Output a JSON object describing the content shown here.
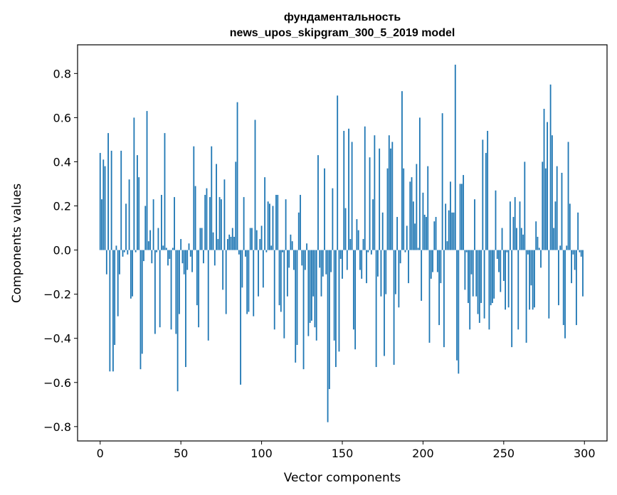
{
  "chart_data": {
    "type": "bar",
    "title_lines": [
      "фундаментальность",
      "news_upos_skipgram_300_5_2019 model"
    ],
    "xlabel": "Vector components",
    "ylabel": "Components values",
    "xlim": [
      -14,
      314
    ],
    "ylim": [
      -0.865,
      0.93
    ],
    "xticks": [
      0,
      50,
      100,
      150,
      200,
      250,
      300
    ],
    "yticks": [
      -0.8,
      -0.6,
      -0.4,
      -0.2,
      0.0,
      0.2,
      0.4,
      0.6,
      0.8
    ],
    "xtick_labels": [
      "0",
      "50",
      "100",
      "150",
      "200",
      "250",
      "300"
    ],
    "ytick_labels": [
      "−0.8",
      "−0.6",
      "−0.4",
      "−0.2",
      "0.0",
      "0.2",
      "0.4",
      "0.6",
      "0.8"
    ],
    "bar_color": "#1f77b4",
    "x": [
      0,
      1,
      2,
      3,
      4,
      5,
      6,
      7,
      8,
      9,
      10,
      11,
      12,
      13,
      14,
      15,
      16,
      17,
      18,
      19,
      20,
      21,
      22,
      23,
      24,
      25,
      26,
      27,
      28,
      29,
      30,
      31,
      32,
      33,
      34,
      35,
      36,
      37,
      38,
      39,
      40,
      41,
      42,
      43,
      44,
      45,
      46,
      47,
      48,
      49,
      50,
      51,
      52,
      53,
      54,
      55,
      56,
      57,
      58,
      59,
      60,
      61,
      62,
      63,
      64,
      65,
      66,
      67,
      68,
      69,
      70,
      71,
      72,
      73,
      74,
      75,
      76,
      77,
      78,
      79,
      80,
      81,
      82,
      83,
      84,
      85,
      86,
      87,
      88,
      89,
      90,
      91,
      92,
      93,
      94,
      95,
      96,
      97,
      98,
      99,
      100,
      101,
      102,
      103,
      104,
      105,
      106,
      107,
      108,
      109,
      110,
      111,
      112,
      113,
      114,
      115,
      116,
      117,
      118,
      119,
      120,
      121,
      122,
      123,
      124,
      125,
      126,
      127,
      128,
      129,
      130,
      131,
      132,
      133,
      134,
      135,
      136,
      137,
      138,
      139,
      140,
      141,
      142,
      143,
      144,
      145,
      146,
      147,
      148,
      149,
      150,
      151,
      152,
      153,
      154,
      155,
      156,
      157,
      158,
      159,
      160,
      161,
      162,
      163,
      164,
      165,
      166,
      167,
      168,
      169,
      170,
      171,
      172,
      173,
      174,
      175,
      176,
      177,
      178,
      179,
      180,
      181,
      182,
      183,
      184,
      185,
      186,
      187,
      188,
      189,
      190,
      191,
      192,
      193,
      194,
      195,
      196,
      197,
      198,
      199,
      200,
      201,
      202,
      203,
      204,
      205,
      206,
      207,
      208,
      209,
      210,
      211,
      212,
      213,
      214,
      215,
      216,
      217,
      218,
      219,
      220,
      221,
      222,
      223,
      224,
      225,
      226,
      227,
      228,
      229,
      230,
      231,
      232,
      233,
      234,
      235,
      236,
      237,
      238,
      239,
      240,
      241,
      242,
      243,
      244,
      245,
      246,
      247,
      248,
      249,
      250,
      251,
      252,
      253,
      254,
      255,
      256,
      257,
      258,
      259,
      260,
      261,
      262,
      263,
      264,
      265,
      266,
      267,
      268,
      269,
      270,
      271,
      272,
      273,
      274,
      275,
      276,
      277,
      278,
      279,
      280,
      281,
      282,
      283,
      284,
      285,
      286,
      287,
      288,
      289,
      290,
      291,
      292,
      293,
      294,
      295,
      296,
      297,
      298,
      299
    ],
    "values": [
      0.44,
      0.23,
      0.41,
      0.38,
      -0.11,
      0.53,
      -0.55,
      0.45,
      -0.55,
      -0.43,
      0.02,
      -0.3,
      -0.11,
      0.45,
      -0.03,
      -0.01,
      0.21,
      -0.02,
      0.32,
      -0.22,
      -0.21,
      0.6,
      -0.01,
      0.43,
      0.33,
      -0.54,
      -0.47,
      -0.05,
      0.2,
      0.63,
      0.04,
      0.09,
      -0.06,
      0.23,
      -0.38,
      -0.01,
      0.1,
      -0.35,
      0.25,
      0.02,
      0.53,
      0.01,
      -0.07,
      -0.04,
      -0.36,
      0.01,
      0.24,
      -0.38,
      -0.64,
      -0.29,
      0.05,
      -0.06,
      -0.11,
      -0.53,
      -0.09,
      0.03,
      -0.03,
      -0.1,
      0.47,
      0.29,
      -0.25,
      -0.35,
      0.1,
      0.1,
      -0.06,
      0.25,
      0.28,
      -0.41,
      0.24,
      0.47,
      0.08,
      -0.07,
      0.39,
      0.05,
      0.24,
      0.23,
      -0.18,
      0.32,
      -0.29,
      0.05,
      0.07,
      0.06,
      0.1,
      0.06,
      0.4,
      0.67,
      -0.02,
      -0.61,
      -0.17,
      0.24,
      -0.03,
      -0.29,
      -0.28,
      0.1,
      0.1,
      -0.3,
      0.59,
      0.09,
      -0.21,
      0.05,
      0.11,
      -0.17,
      0.33,
      -0.01,
      0.22,
      0.21,
      0.02,
      0.2,
      -0.36,
      0.25,
      0.25,
      -0.25,
      -0.28,
      -0.01,
      -0.4,
      0.23,
      -0.21,
      -0.08,
      0.07,
      0.04,
      -0.09,
      -0.51,
      -0.43,
      0.17,
      0.25,
      -0.07,
      -0.54,
      -0.09,
      0.03,
      -0.39,
      -0.33,
      -0.32,
      -0.21,
      -0.35,
      -0.41,
      0.43,
      -0.08,
      -0.21,
      -0.12,
      0.37,
      -0.11,
      -0.78,
      -0.63,
      -0.1,
      0.28,
      -0.41,
      -0.53,
      0.7,
      -0.46,
      -0.04,
      -0.13,
      0.54,
      0.19,
      -0.09,
      0.55,
      0.05,
      0.49,
      -0.36,
      -0.45,
      0.14,
      0.09,
      -0.09,
      -0.13,
      0.05,
      0.56,
      -0.15,
      -0.01,
      0.42,
      -0.02,
      0.23,
      0.52,
      -0.53,
      -0.12,
      0.46,
      -0.21,
      0.17,
      -0.48,
      -0.2,
      0.37,
      0.52,
      0.46,
      0.49,
      -0.52,
      -0.2,
      0.15,
      -0.26,
      -0.06,
      0.72,
      0.37,
      -0.01,
      0.11,
      -0.15,
      0.31,
      0.33,
      0.22,
      0.12,
      0.39,
      0.01,
      0.6,
      -0.23,
      0.26,
      0.16,
      0.15,
      0.38,
      -0.42,
      -0.13,
      -0.1,
      0.13,
      0.15,
      -0.1,
      -0.34,
      -0.15,
      0.62,
      -0.44,
      0.21,
      0.04,
      0.18,
      0.31,
      0.17,
      0.17,
      0.84,
      -0.5,
      -0.56,
      0.3,
      0.3,
      0.34,
      -0.18,
      -0.01,
      -0.24,
      -0.36,
      -0.11,
      -0.21,
      0.23,
      -0.21,
      -0.29,
      -0.33,
      -0.24,
      0.5,
      -0.31,
      0.44,
      0.54,
      -0.36,
      -0.25,
      -0.24,
      -0.22,
      0.27,
      -0.04,
      -0.1,
      -0.19,
      0.1,
      -0.14,
      -0.27,
      -0.01,
      -0.26,
      0.22,
      -0.44,
      0.15,
      0.24,
      0.1,
      -0.36,
      0.22,
      0.1,
      0.07,
      0.4,
      -0.42,
      -0.02,
      -0.27,
      -0.16,
      -0.27,
      -0.26,
      0.13,
      0.06,
      0.01,
      -0.08,
      0.4,
      0.64,
      0.37,
      0.58,
      -0.31,
      0.75,
      0.52,
      0.1,
      0.22,
      0.38,
      -0.25,
      0.02,
      0.35,
      -0.34,
      -0.4,
      0.02,
      0.49,
      0.21,
      -0.15,
      -0.02,
      -0.09,
      -0.34,
      0.17,
      -0.01,
      -0.03,
      -0.21
    ],
    "grid": false,
    "legend": "none"
  }
}
